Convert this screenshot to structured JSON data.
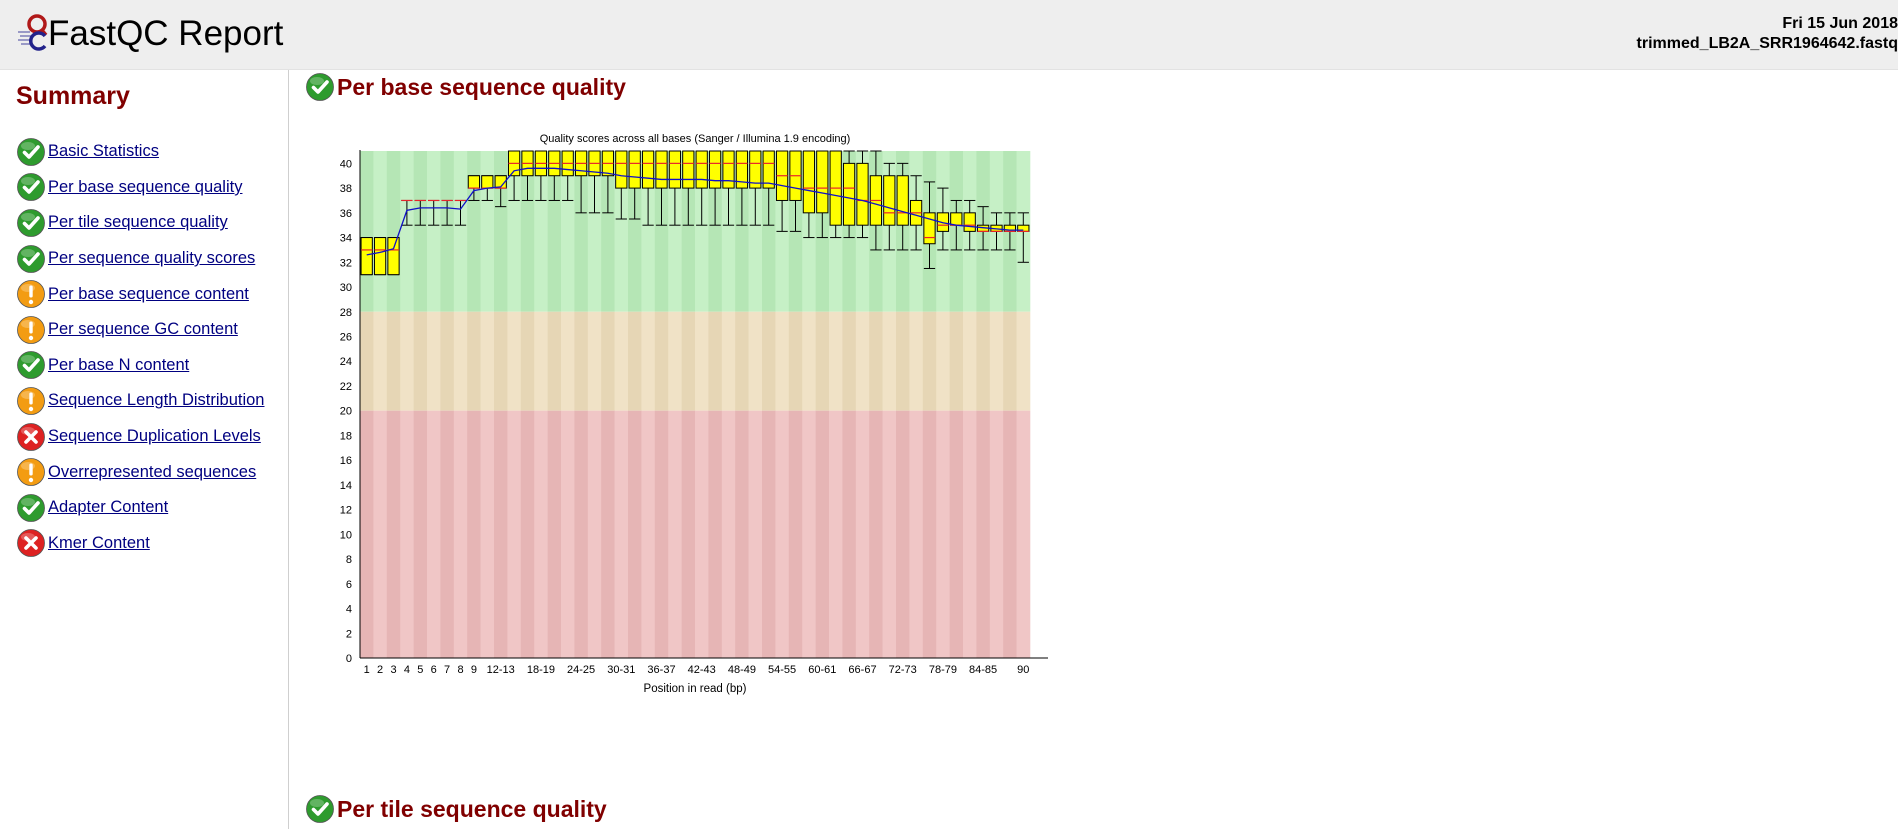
{
  "header": {
    "title": "FastQC Report",
    "date": "Fri 15 Jun 2018",
    "filename": "trimmed_LB2A_SRR1964642.fastq",
    "logo_icon": "fastqc-logo-icon"
  },
  "summary": {
    "title": "Summary",
    "items": [
      {
        "label": "Basic Statistics",
        "status": "pass"
      },
      {
        "label": "Per base sequence quality",
        "status": "pass"
      },
      {
        "label": "Per tile sequence quality",
        "status": "pass"
      },
      {
        "label": "Per sequence quality scores",
        "status": "pass"
      },
      {
        "label": "Per base sequence content",
        "status": "warn"
      },
      {
        "label": "Per sequence GC content",
        "status": "warn"
      },
      {
        "label": "Per base N content",
        "status": "pass"
      },
      {
        "label": "Sequence Length Distribution",
        "status": "warn"
      },
      {
        "label": "Sequence Duplication Levels",
        "status": "fail"
      },
      {
        "label": "Overrepresented sequences",
        "status": "warn"
      },
      {
        "label": "Adapter Content",
        "status": "pass"
      },
      {
        "label": "Kmer Content",
        "status": "fail"
      }
    ]
  },
  "status_colors": {
    "pass": "#2e9b2e",
    "warn": "#f39c12",
    "fail": "#dd2222"
  },
  "modules": [
    {
      "title": "Per base sequence quality",
      "status": "pass"
    },
    {
      "title": "Per tile sequence quality",
      "status": "pass"
    }
  ],
  "chart_data": {
    "type": "box",
    "title": "Quality scores across all bases (Sanger / Illumina 1.9 encoding)",
    "xlabel": "Position in read (bp)",
    "ylabel": "",
    "ylim": [
      0,
      41
    ],
    "yticks": [
      0,
      2,
      4,
      6,
      8,
      10,
      12,
      14,
      16,
      18,
      20,
      22,
      24,
      26,
      28,
      30,
      32,
      34,
      36,
      38,
      40
    ],
    "categories": [
      "1",
      "2",
      "3",
      "4",
      "5",
      "6",
      "7",
      "8",
      "9",
      "10-11",
      "12-13",
      "14-15",
      "16-17",
      "18-19",
      "20-21",
      "22-23",
      "24-25",
      "26-27",
      "28-29",
      "30-31",
      "32-33",
      "34-35",
      "36-37",
      "38-39",
      "40-41",
      "42-43",
      "44-45",
      "46-47",
      "48-49",
      "50-51",
      "52-53",
      "54-55",
      "56-57",
      "58-59",
      "60-61",
      "62-63",
      "64-65",
      "66-67",
      "68-69",
      "70-71",
      "72-73",
      "74-75",
      "76-77",
      "78-79",
      "80-81",
      "82-83",
      "84-85",
      "86-87",
      "88-89",
      "90"
    ],
    "xtick_labels": [
      "1",
      "2",
      "3",
      "4",
      "5",
      "6",
      "7",
      "8",
      "9",
      "",
      "12-13",
      "",
      "",
      "18-19",
      "",
      "",
      "24-25",
      "",
      "",
      "30-31",
      "",
      "",
      "36-37",
      "",
      "",
      "42-43",
      "",
      "",
      "48-49",
      "",
      "",
      "54-55",
      "",
      "",
      "60-61",
      "",
      "",
      "66-67",
      "",
      "",
      "72-73",
      "",
      "",
      "78-79",
      "",
      "",
      "84-85",
      "",
      "",
      "90"
    ],
    "zones": [
      {
        "from": 28,
        "to": 41,
        "color": "green"
      },
      {
        "from": 20,
        "to": 28,
        "color": "orange"
      },
      {
        "from": 0,
        "to": 20,
        "color": "red"
      }
    ],
    "series": [
      {
        "name": "",
        "type": "box",
        "values": [
          [
            31,
            31,
            33,
            34,
            34
          ],
          [
            31,
            31,
            33,
            34,
            34
          ],
          [
            31,
            31,
            33,
            34,
            34
          ],
          [
            35,
            37,
            37,
            37,
            37
          ],
          [
            35,
            37,
            37,
            37,
            37
          ],
          [
            35,
            37,
            37,
            37,
            37
          ],
          [
            35,
            37,
            37,
            37,
            37
          ],
          [
            35,
            37,
            37,
            37,
            37
          ],
          [
            37,
            38,
            38,
            39,
            39
          ],
          [
            37,
            38,
            38,
            39,
            39
          ],
          [
            36.5,
            38,
            38,
            39,
            39
          ],
          [
            37,
            39,
            40,
            41,
            41
          ],
          [
            37,
            39,
            40,
            41,
            41
          ],
          [
            37,
            39,
            40,
            41,
            41
          ],
          [
            37,
            39,
            40,
            41,
            41
          ],
          [
            37,
            39,
            40,
            41,
            41
          ],
          [
            36,
            39,
            40,
            41,
            41
          ],
          [
            36,
            39,
            40,
            41,
            41
          ],
          [
            36,
            39,
            40,
            41,
            41
          ],
          [
            35.5,
            38,
            40,
            41,
            41
          ],
          [
            35.5,
            38,
            40,
            41,
            41
          ],
          [
            35,
            38,
            40,
            41,
            41
          ],
          [
            35,
            38,
            40,
            41,
            41
          ],
          [
            35,
            38,
            40,
            41,
            41
          ],
          [
            35,
            38,
            40,
            41,
            41
          ],
          [
            35,
            38,
            40,
            41,
            41
          ],
          [
            35,
            38,
            40,
            41,
            41
          ],
          [
            35,
            38,
            40,
            41,
            41
          ],
          [
            35,
            38,
            40,
            41,
            41
          ],
          [
            35,
            38,
            40,
            41,
            41
          ],
          [
            35,
            38,
            40,
            41,
            41
          ],
          [
            34.5,
            37,
            39,
            41,
            41
          ],
          [
            34.5,
            37,
            39,
            41,
            41
          ],
          [
            34,
            36,
            38,
            41,
            41
          ],
          [
            34,
            36,
            38,
            41,
            41
          ],
          [
            34,
            35,
            38,
            41,
            41
          ],
          [
            34,
            35,
            38,
            40,
            41
          ],
          [
            34,
            35,
            37,
            40,
            41
          ],
          [
            33,
            35,
            37,
            39,
            41
          ],
          [
            33,
            35,
            36,
            39,
            40
          ],
          [
            33,
            35,
            36,
            39,
            40
          ],
          [
            33,
            35,
            36,
            37,
            39
          ],
          [
            31.5,
            33.5,
            34,
            36,
            38.5
          ],
          [
            33,
            34.5,
            35,
            36,
            38
          ],
          [
            33,
            35,
            35,
            36,
            37
          ],
          [
            33,
            34.5,
            35,
            36,
            37
          ],
          [
            33,
            34.5,
            34.5,
            35,
            36.5
          ],
          [
            33,
            34.5,
            34.5,
            35,
            36
          ],
          [
            33,
            34.5,
            34.5,
            35,
            36
          ],
          [
            32,
            34.5,
            34.5,
            35,
            36
          ]
        ]
      },
      {
        "name": "",
        "type": "line",
        "values": [
          32.6,
          32.8,
          33.1,
          36.2,
          36.4,
          36.4,
          36.4,
          36.3,
          37.8,
          38.0,
          38.1,
          39.4,
          39.6,
          39.6,
          39.6,
          39.5,
          39.4,
          39.3,
          39.2,
          39.0,
          38.9,
          38.8,
          38.7,
          38.7,
          38.7,
          38.7,
          38.6,
          38.6,
          38.5,
          38.4,
          38.4,
          38.2,
          38.0,
          37.8,
          37.6,
          37.4,
          37.2,
          37.0,
          36.7,
          36.4,
          36.1,
          35.8,
          35.5,
          35.2,
          35.0,
          34.9,
          34.8,
          34.7,
          34.6,
          34.6
        ]
      }
    ]
  }
}
